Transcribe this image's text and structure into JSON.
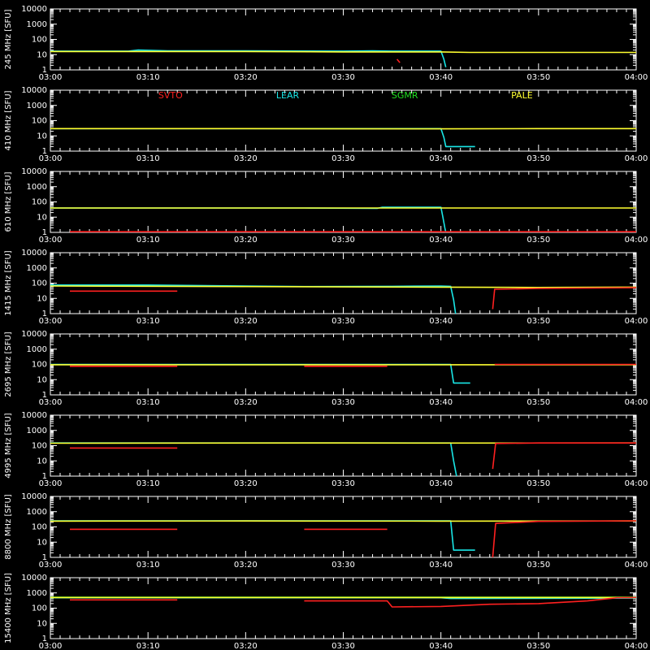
{
  "chart_data": {
    "type": "line",
    "y_scale": "log",
    "ylim": [
      1,
      10000
    ],
    "y_ticks": [
      1,
      10,
      100,
      1000,
      10000
    ],
    "y_tick_labels": [
      "1",
      "10",
      "100",
      "1000",
      "10000"
    ],
    "x_ticks": [
      "03:00",
      "03:10",
      "03:20",
      "03:30",
      "03:40",
      "03:50",
      "04:00"
    ],
    "x_range_minutes": [
      0,
      60
    ],
    "legend": [
      "SVTO",
      "LEAR",
      "SGMR",
      "PALE"
    ],
    "colors": {
      "SVTO": "#ff2020",
      "LEAR": "#19e6e6",
      "SGMR": "#20e020",
      "PALE": "#ffff30",
      "axis": "#ffffff",
      "background": "#000000"
    },
    "panels": [
      {
        "ylabel": "245 MHz [SFU]",
        "series": [
          {
            "name": "LEAR",
            "values": [
              [
                0,
                17
              ],
              [
                8,
                17
              ],
              [
                9,
                20
              ],
              [
                12,
                18
              ],
              [
                20,
                18
              ],
              [
                30,
                17
              ],
              [
                33,
                18
              ],
              [
                35,
                17
              ],
              [
                40,
                17
              ],
              [
                40.3,
                5
              ],
              [
                40.5,
                1.5
              ]
            ]
          },
          {
            "name": "PALE",
            "values": [
              [
                0,
                16
              ],
              [
                10,
                16
              ],
              [
                20,
                16
              ],
              [
                30,
                15
              ],
              [
                40,
                15
              ],
              [
                43,
                14
              ],
              [
                50,
                14
              ],
              [
                60,
                14
              ]
            ]
          },
          {
            "name": "SVTO",
            "values": [
              [
                35.5,
                5
              ],
              [
                35.8,
                3
              ]
            ]
          }
        ]
      },
      {
        "ylabel": "410 MHz [SFU]",
        "series": [
          {
            "name": "LEAR",
            "values": [
              [
                0,
                30
              ],
              [
                40,
                30
              ],
              [
                40.3,
                8
              ],
              [
                40.5,
                2
              ],
              [
                43.5,
                2
              ]
            ]
          },
          {
            "name": "PALE",
            "values": [
              [
                0,
                30
              ],
              [
                20,
                30
              ],
              [
                40,
                29
              ],
              [
                50,
                30
              ],
              [
                60,
                30
              ]
            ]
          }
        ]
      },
      {
        "ylabel": "610 MHz [SFU]",
        "series": [
          {
            "name": "LEAR",
            "values": [
              [
                0,
                40
              ],
              [
                4,
                40
              ],
              [
                24,
                40
              ],
              [
                26,
                40
              ],
              [
                33.5,
                38
              ],
              [
                34,
                45
              ],
              [
                40,
                45
              ],
              [
                40.2,
                10
              ],
              [
                40.4,
                2
              ],
              [
                40.5,
                1
              ]
            ]
          },
          {
            "name": "PALE",
            "values": [
              [
                0,
                40
              ],
              [
                20,
                40
              ],
              [
                40,
                40
              ],
              [
                50,
                40
              ],
              [
                60,
                40
              ]
            ]
          },
          {
            "name": "SVTO",
            "values": [
              [
                2,
                1.1
              ],
              [
                13,
                1.1
              ],
              [
                26,
                1.1
              ],
              [
                35,
                1.1
              ],
              [
                40,
                1.1
              ],
              [
                60,
                1.1
              ]
            ]
          }
        ]
      },
      {
        "ylabel": "1415 MHz [SFU]",
        "series": [
          {
            "name": "LEAR",
            "values": [
              [
                0,
                75
              ],
              [
                10,
                75
              ],
              [
                20,
                65
              ],
              [
                26,
                60
              ],
              [
                35,
                62
              ],
              [
                40,
                65
              ],
              [
                41,
                62
              ],
              [
                41.3,
                8
              ],
              [
                41.5,
                1
              ]
            ]
          },
          {
            "name": "PALE",
            "values": [
              [
                0,
                65
              ],
              [
                20,
                60
              ],
              [
                40,
                55
              ],
              [
                50,
                52
              ],
              [
                60,
                55
              ]
            ]
          },
          {
            "name": "SVTO",
            "values": [
              [
                2,
                30
              ],
              [
                13,
                30
              ]
            ]
          },
          {
            "name": "SVTO",
            "values": [
              [
                45.3,
                2
              ],
              [
                45.5,
                40
              ],
              [
                50,
                45
              ],
              [
                60,
                50
              ]
            ]
          }
        ]
      },
      {
        "ylabel": "2695 MHz [SFU]",
        "series": [
          {
            "name": "LEAR",
            "values": [
              [
                0,
                100
              ],
              [
                40,
                100
              ],
              [
                41,
                100
              ],
              [
                41.3,
                6
              ],
              [
                43,
                6
              ]
            ]
          },
          {
            "name": "PALE",
            "values": [
              [
                0,
                95
              ],
              [
                20,
                95
              ],
              [
                40,
                95
              ],
              [
                60,
                95
              ]
            ]
          },
          {
            "name": "SVTO",
            "values": [
              [
                2,
                75
              ],
              [
                13,
                75
              ]
            ]
          },
          {
            "name": "SVTO",
            "values": [
              [
                26,
                75
              ],
              [
                34.5,
                75
              ]
            ]
          },
          {
            "name": "SVTO",
            "values": [
              [
                45.5,
                100
              ],
              [
                60,
                100
              ]
            ]
          }
        ]
      },
      {
        "ylabel": "4995 MHz [SFU]",
        "series": [
          {
            "name": "LEAR",
            "values": [
              [
                0,
                150
              ],
              [
                40,
                150
              ],
              [
                41,
                150
              ],
              [
                41.3,
                10
              ],
              [
                41.6,
                1
              ]
            ]
          },
          {
            "name": "PALE",
            "values": [
              [
                0,
                145
              ],
              [
                30,
                150
              ],
              [
                40,
                148
              ],
              [
                60,
                150
              ]
            ]
          },
          {
            "name": "SVTO",
            "values": [
              [
                2,
                70
              ],
              [
                13,
                70
              ]
            ]
          },
          {
            "name": "SVTO",
            "values": [
              [
                45.3,
                3
              ],
              [
                45.6,
                140
              ],
              [
                50,
                150
              ],
              [
                60,
                150
              ]
            ]
          }
        ]
      },
      {
        "ylabel": "8800 MHz [SFU]",
        "series": [
          {
            "name": "LEAR",
            "values": [
              [
                0,
                250
              ],
              [
                40,
                250
              ],
              [
                41,
                250
              ],
              [
                41.3,
                3
              ],
              [
                43.5,
                3
              ]
            ]
          },
          {
            "name": "PALE",
            "values": [
              [
                0,
                240
              ],
              [
                20,
                245
              ],
              [
                40,
                240
              ],
              [
                60,
                245
              ]
            ]
          },
          {
            "name": "SVTO",
            "values": [
              [
                2,
                70
              ],
              [
                13,
                70
              ]
            ]
          },
          {
            "name": "SVTO",
            "values": [
              [
                26,
                70
              ],
              [
                34.5,
                70
              ]
            ]
          },
          {
            "name": "SVTO",
            "values": [
              [
                45.3,
                1
              ],
              [
                45.6,
                170
              ],
              [
                50,
                230
              ],
              [
                60,
                250
              ]
            ]
          }
        ]
      },
      {
        "ylabel": "15400 MHz [SFU]",
        "series": [
          {
            "name": "LEAR",
            "values": [
              [
                0,
                480
              ],
              [
                20,
                480
              ],
              [
                40,
                480
              ],
              [
                41,
                430
              ],
              [
                60,
                460
              ]
            ]
          },
          {
            "name": "SGMR",
            "values": [
              [
                0,
                520
              ],
              [
                20,
                520
              ],
              [
                40,
                520
              ],
              [
                60,
                520
              ]
            ]
          },
          {
            "name": "PALE",
            "values": [
              [
                0,
                500
              ],
              [
                30,
                500
              ],
              [
                60,
                500
              ]
            ]
          },
          {
            "name": "SVTO",
            "values": [
              [
                2,
                350
              ],
              [
                13,
                350
              ]
            ]
          },
          {
            "name": "SVTO",
            "values": [
              [
                26,
                300
              ],
              [
                34.5,
                300
              ],
              [
                35,
                120
              ],
              [
                40,
                130
              ],
              [
                45,
                180
              ],
              [
                50,
                200
              ],
              [
                55,
                300
              ],
              [
                58,
                480
              ],
              [
                60,
                500
              ]
            ]
          }
        ]
      }
    ]
  }
}
